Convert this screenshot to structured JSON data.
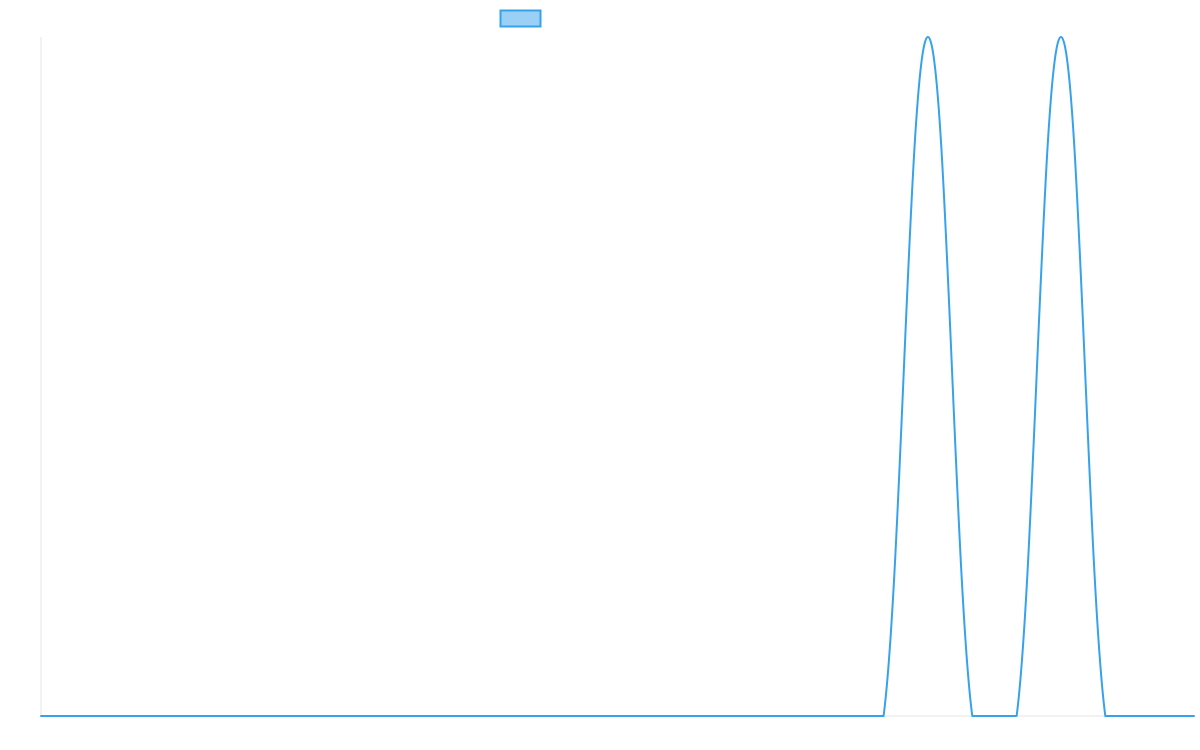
{
  "chart_data": {
    "type": "line",
    "title": "",
    "xlabel": "",
    "ylabel": "",
    "x": [
      0,
      1,
      2,
      3,
      4,
      5,
      6,
      7,
      8,
      9,
      10,
      11,
      12,
      13,
      14,
      15,
      16,
      17,
      18,
      19,
      20,
      21,
      22,
      23,
      24,
      25,
      26
    ],
    "series": [
      {
        "name": "",
        "values": [
          0,
          0,
          0,
          0,
          0,
          0,
          0,
          0,
          0,
          0,
          0,
          0,
          0,
          0,
          0,
          0,
          0,
          0,
          0,
          0,
          1,
          0,
          0,
          1,
          0,
          0,
          0
        ],
        "color": "#36a2eb",
        "fill": "rgba(54, 162, 235, 0.5)"
      }
    ],
    "xlim": [
      0,
      26
    ],
    "ylim": [
      0,
      1
    ],
    "grid": false,
    "legend": "top-center",
    "axis_color": "#e6e6e6"
  }
}
